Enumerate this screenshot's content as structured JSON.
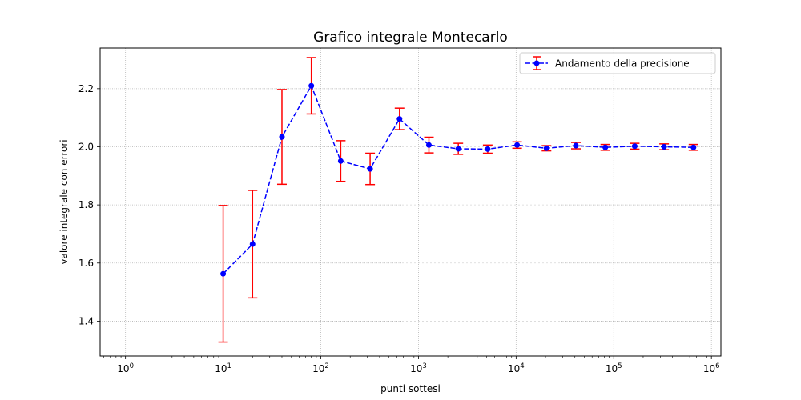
{
  "chart_data": {
    "type": "scatter",
    "title": "Grafico integrale Montecarlo",
    "xlabel": "punti sottesi",
    "ylabel": "valore integrale con errori",
    "xscale": "log",
    "xlim": [
      0.55,
      1250000
    ],
    "ylim": [
      1.28,
      2.34
    ],
    "grid": true,
    "legend_position": "top-right",
    "x_ticks": [
      1,
      10,
      100,
      1000,
      10000,
      100000,
      1000000
    ],
    "x_tick_labels": [
      {
        "base": "10",
        "exp": "0"
      },
      {
        "base": "10",
        "exp": "1"
      },
      {
        "base": "10",
        "exp": "2"
      },
      {
        "base": "10",
        "exp": "3"
      },
      {
        "base": "10",
        "exp": "4"
      },
      {
        "base": "10",
        "exp": "5"
      },
      {
        "base": "10",
        "exp": "6"
      }
    ],
    "y_ticks": [
      1.4,
      1.6,
      1.8,
      2.0,
      2.2
    ],
    "y_tick_labels": [
      "1.4",
      "1.6",
      "1.8",
      "2.0",
      "2.2"
    ],
    "series": [
      {
        "name": "Andamento della precisione",
        "line_color": "#0000ff",
        "marker_color": "#0000ff",
        "errorbar_color": "#ff0000",
        "line_style": "dashed",
        "x": [
          10,
          20,
          40,
          80,
          160,
          320,
          640,
          1280,
          2560,
          5120,
          10240,
          20480,
          40960,
          81920,
          163840,
          327680,
          655360
        ],
        "y": [
          1.563,
          1.665,
          2.034,
          2.21,
          1.951,
          1.924,
          2.096,
          2.006,
          1.993,
          1.992,
          2.006,
          1.995,
          2.004,
          1.998,
          2.002,
          2.0,
          1.998
        ],
        "yerr": [
          0.235,
          0.185,
          0.163,
          0.097,
          0.07,
          0.054,
          0.037,
          0.027,
          0.019,
          0.014,
          0.011,
          0.009,
          0.011,
          0.01,
          0.01,
          0.01,
          0.01
        ]
      }
    ]
  }
}
